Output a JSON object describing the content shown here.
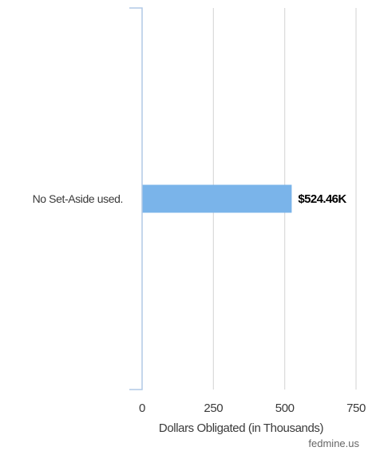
{
  "chart_data": {
    "type": "bar",
    "orientation": "horizontal",
    "categories": [
      "No Set-Aside used."
    ],
    "values": [
      524.46
    ],
    "data_labels": [
      "$524.46K"
    ],
    "xlabel": "Dollars Obligated (in Thousands)",
    "xlim": [
      0,
      750
    ],
    "xticks": [
      0,
      250,
      500,
      750
    ],
    "xtick_labels": [
      "0",
      "250",
      "500",
      "750"
    ],
    "grid": "vertical",
    "legend": "none"
  },
  "colors": {
    "bar": "#7ab4ea",
    "grid": "#d9d9d9",
    "axis": "#b0c8e6"
  },
  "watermark": "fedmine.us"
}
